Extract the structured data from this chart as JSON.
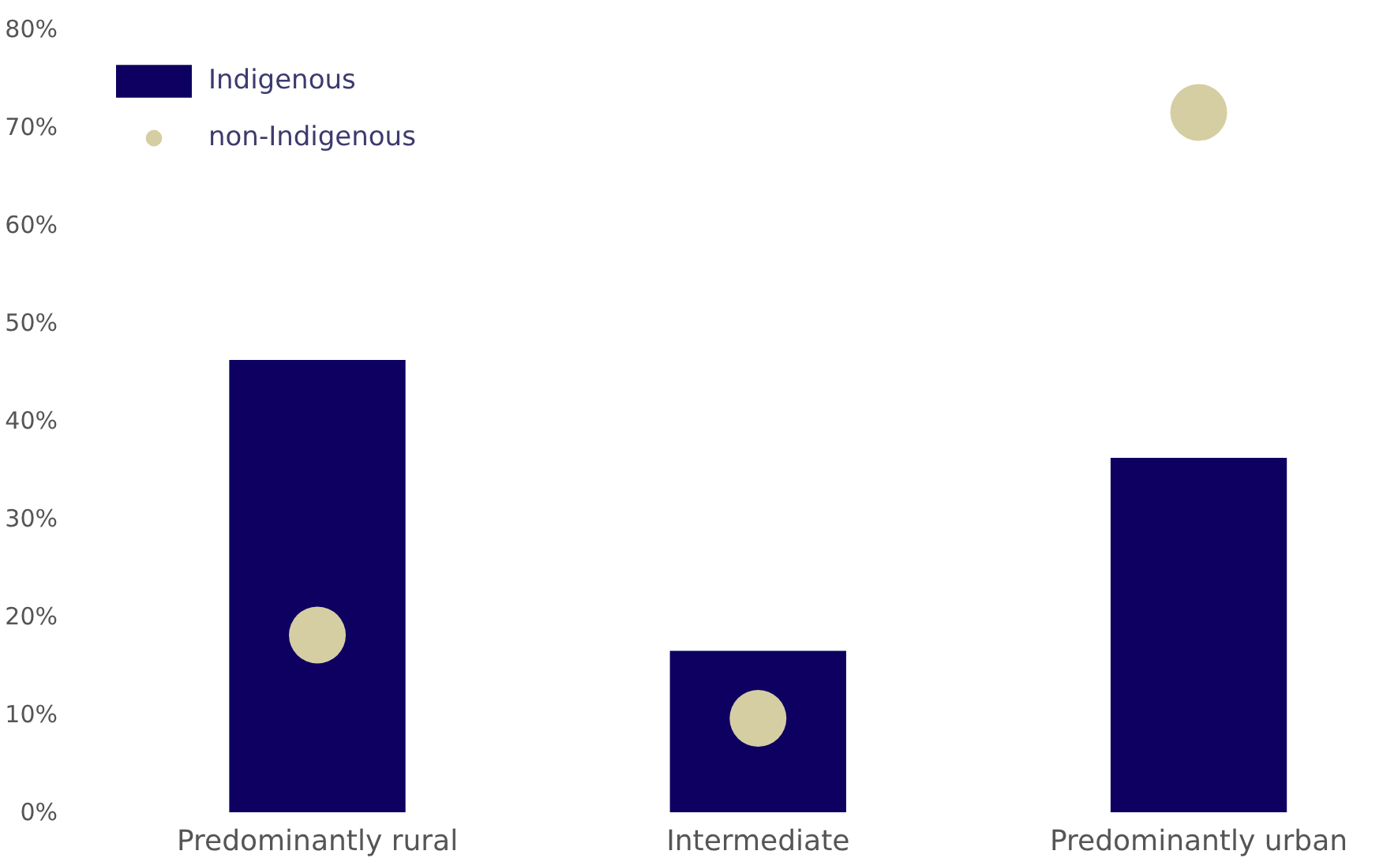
{
  "chart_data": {
    "type": "bar",
    "categories": [
      "Predominantly rural",
      "Intermediate",
      "Predominantly urban"
    ],
    "series": [
      {
        "name": "Indigenous",
        "color": "#0d0060",
        "values": [
          46.2,
          16.5,
          36.2
        ]
      },
      {
        "name": "non-Indigenous",
        "type": "scatter",
        "marker": "circle",
        "color": "#d5cea3",
        "values": [
          18.1,
          9.6,
          71.5
        ]
      }
    ],
    "ylim": [
      0,
      80
    ],
    "yticks": [
      {
        "value": 0,
        "label": "0%"
      },
      {
        "value": 10,
        "label": "10%"
      },
      {
        "value": 20,
        "label": "20%"
      },
      {
        "value": 30,
        "label": "30%"
      },
      {
        "value": 40,
        "label": "40%"
      },
      {
        "value": 50,
        "label": "50%"
      },
      {
        "value": 60,
        "label": "60%"
      },
      {
        "value": 70,
        "label": "70%"
      },
      {
        "value": 80,
        "label": "80%"
      }
    ],
    "grid": false,
    "legend": "top left"
  }
}
